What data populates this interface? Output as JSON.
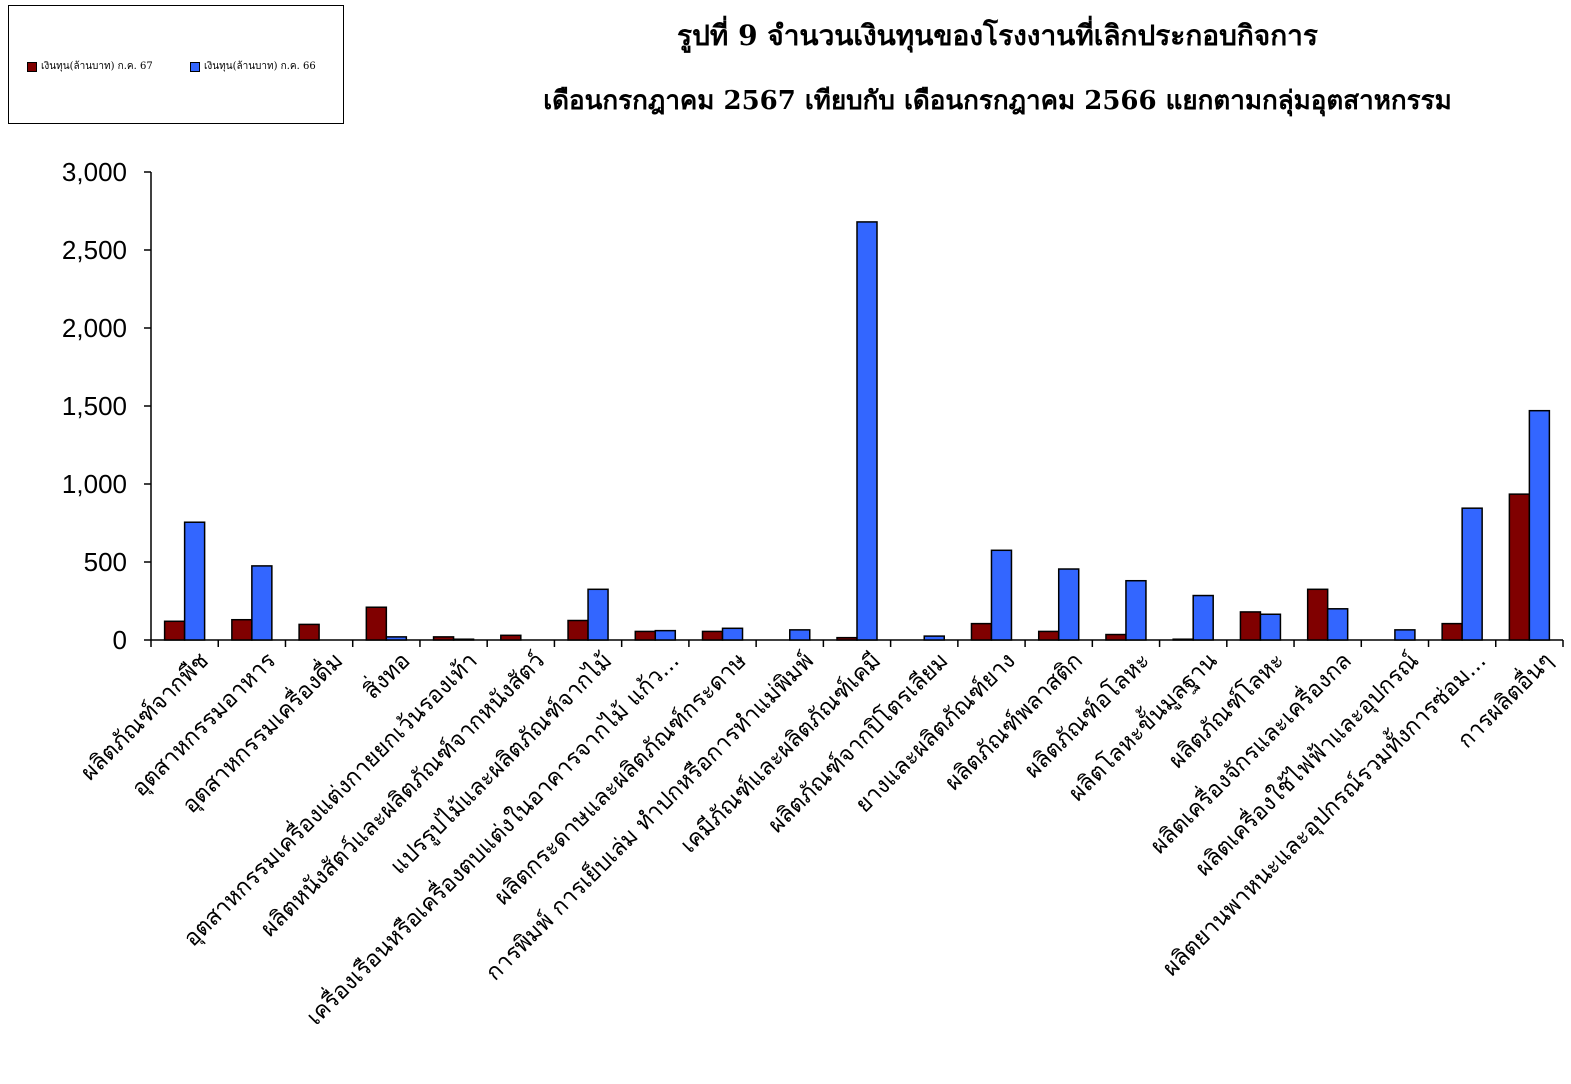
{
  "title_line1": "รูปที่  9   จำนวนเงินทุนของโรงงานที่เลิกประกอบกิจการ",
  "title_line2": "เดือนกรกฎาคม 2567 เทียบกับ เดือนกรกฎาคม 2566 แยกตามกลุ่มอุตสาหกรรม",
  "colors": {
    "series67": "#800000",
    "series66": "#3366ff"
  },
  "chart_data": {
    "type": "bar",
    "title": "รูปที่  9   จำนวนเงินทุนของโรงงานที่เลิกประกอบกิจการ เดือนกรกฎาคม 2567 เทียบกับ เดือนกรกฎาคม 2566 แยกตามกลุ่มอุตสาหกรรม",
    "xlabel": "",
    "ylabel": "",
    "ylim": [
      0,
      3000
    ],
    "yticks": [
      "0",
      "500",
      "1,000",
      "1,500",
      "2,000",
      "2,500",
      "3,000"
    ],
    "legend_position": "top-left",
    "grid": false,
    "categories": [
      "ผลิตภัณฑ์จากพืช",
      "อุตสาหกรรมอาหาร",
      "อุตสาหกรรมเครื่องดื่ม",
      "สิ่งทอ",
      "อุตสาหกรรมเครื่องแต่งกายยกเว้นรองเท้า",
      "ผลิตหนังสัตว์และผลิตภัณฑ์จากหนังสัตว์",
      "แปรรูปไม้และผลิตภัณฑ์จากไม้",
      "เครื่องเรือนหรือเครื่องตบแต่งในอาคารจากไม้ แก้ว...",
      "ผลิตกระดาษและผลิตภัณฑ์กระดาษ",
      "การพิมพ์ การเย็บเล่ม ทำปกหรือการทำแม่พิมพ์",
      "เคมีภัณฑ์และผลิตภัณฑ์เคมี",
      "ผลิตภัณฑ์จากปิโตรเลียม",
      "ยางและผลิตภัณฑ์ยาง",
      "ผลิตภัณฑ์พลาสติก",
      "ผลิตภัณฑ์อโลหะ",
      "ผลิตโลหะขั้นมูลฐาน",
      "ผลิตภัณฑ์โลหะ",
      "ผลิตเครื่องจักรและเครื่องกล",
      "ผลิตเครื่องใช้ไฟฟ้าและอุปกรณ์",
      "ผลิตยานพาหนะและอุปกรณ์รวมทั้งการซ่อม...",
      "การผลิตอื่นๆ"
    ],
    "series": [
      {
        "name": "เงินทุน(ล้านบาท) ก.ค. 67",
        "values": [
          120,
          130,
          100,
          210,
          20,
          30,
          125,
          55,
          55,
          0,
          15,
          0,
          105,
          55,
          35,
          5,
          180,
          325,
          0,
          105,
          935
        ]
      },
      {
        "name": "เงินทุน(ล้านบาท) ก.ค. 66",
        "values": [
          755,
          475,
          0,
          20,
          5,
          0,
          325,
          60,
          75,
          65,
          2680,
          25,
          575,
          455,
          380,
          285,
          165,
          200,
          65,
          845,
          1470
        ]
      }
    ]
  }
}
